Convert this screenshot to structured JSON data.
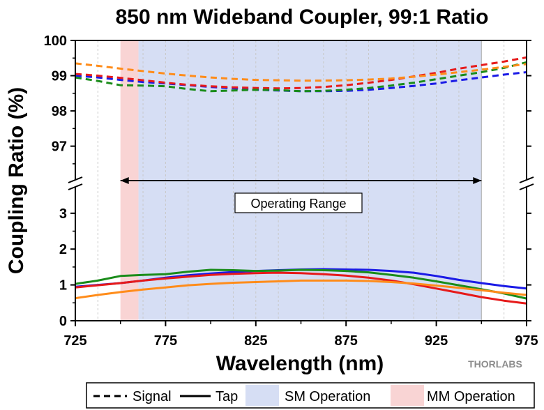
{
  "chart_data": {
    "type": "line",
    "title": "850 nm Wideband Coupler, 99:1 Ratio",
    "xlabel": "Wavelength (nm)",
    "ylabel": "Coupling Ratio (%)",
    "xlim": [
      725,
      975
    ],
    "x_ticks": [
      725,
      775,
      825,
      875,
      925,
      975
    ],
    "y_upper_range": [
      96.3,
      100
    ],
    "y_upper_ticks": [
      97,
      98,
      99,
      100
    ],
    "y_lower_range": [
      0,
      3.6
    ],
    "y_lower_ticks": [
      0,
      1,
      2,
      3
    ],
    "regions": [
      {
        "name": "MM Operation",
        "start": 750,
        "end": 760,
        "color": "#f9d4d4"
      },
      {
        "name": "SM Operation",
        "start": 760,
        "end": 950,
        "color": "#d6def4"
      }
    ],
    "annotations": [
      {
        "text": "Operating Range",
        "x": 837,
        "y_lower": 3.0,
        "arrow_from": 750,
        "arrow_to": 950
      }
    ],
    "legend": [
      {
        "label": "Signal",
        "style": "dashed"
      },
      {
        "label": "Tap",
        "style": "solid"
      },
      {
        "label": "SM Operation",
        "style": "fill"
      },
      {
        "label": "MM Operation",
        "style": "fill"
      }
    ],
    "watermark": "THORLABS",
    "x": [
      725,
      737.5,
      750,
      762.5,
      775,
      787.5,
      800,
      812.5,
      825,
      837.5,
      850,
      862.5,
      875,
      887.5,
      900,
      912.5,
      925,
      937.5,
      950,
      962.5,
      975
    ],
    "series": [
      {
        "name": "Signal - Blue",
        "line": "dashed",
        "panel": "upper",
        "color": "#1a1ae6",
        "values": [
          99.0,
          98.95,
          98.88,
          98.82,
          98.78,
          98.73,
          98.68,
          98.64,
          98.6,
          98.58,
          98.56,
          98.56,
          98.57,
          98.6,
          98.65,
          98.71,
          98.78,
          98.87,
          98.95,
          99.03,
          99.1
        ]
      },
      {
        "name": "Signal - Red",
        "line": "dashed",
        "panel": "upper",
        "color": "#e61a1a",
        "values": [
          99.05,
          99.0,
          98.94,
          98.87,
          98.8,
          98.74,
          98.7,
          98.67,
          98.65,
          98.64,
          98.65,
          98.68,
          98.73,
          98.8,
          98.88,
          98.98,
          99.08,
          99.2,
          99.3,
          99.4,
          99.52
        ]
      },
      {
        "name": "Signal - Green",
        "line": "dashed",
        "panel": "upper",
        "color": "#1a8c1a",
        "values": [
          98.95,
          98.85,
          98.73,
          98.72,
          98.7,
          98.62,
          98.56,
          98.58,
          98.6,
          98.59,
          98.56,
          98.57,
          98.6,
          98.65,
          98.72,
          98.8,
          98.9,
          99.0,
          99.1,
          99.22,
          99.38
        ]
      },
      {
        "name": "Signal - Orange",
        "line": "dashed",
        "panel": "upper",
        "color": "#ff8c1a",
        "values": [
          99.35,
          99.28,
          99.2,
          99.13,
          99.06,
          99.0,
          98.95,
          98.91,
          98.88,
          98.87,
          98.86,
          98.86,
          98.87,
          98.89,
          98.92,
          98.97,
          99.03,
          99.1,
          99.17,
          99.25,
          99.33
        ]
      },
      {
        "name": "Tap - Blue",
        "line": "solid",
        "panel": "lower",
        "color": "#1a1ae6",
        "values": [
          0.95,
          1.0,
          1.05,
          1.12,
          1.2,
          1.27,
          1.32,
          1.36,
          1.39,
          1.41,
          1.43,
          1.44,
          1.43,
          1.42,
          1.39,
          1.34,
          1.25,
          1.14,
          1.05,
          0.97,
          0.9
        ]
      },
      {
        "name": "Tap - Red",
        "line": "solid",
        "panel": "lower",
        "color": "#e61a1a",
        "values": [
          0.93,
          0.99,
          1.05,
          1.12,
          1.18,
          1.23,
          1.28,
          1.31,
          1.33,
          1.34,
          1.33,
          1.3,
          1.26,
          1.2,
          1.12,
          1.02,
          0.9,
          0.78,
          0.66,
          0.56,
          0.48
        ]
      },
      {
        "name": "Tap - Green",
        "line": "solid",
        "panel": "lower",
        "color": "#1a8c1a",
        "values": [
          1.03,
          1.12,
          1.25,
          1.28,
          1.3,
          1.37,
          1.42,
          1.41,
          1.39,
          1.4,
          1.42,
          1.41,
          1.39,
          1.35,
          1.28,
          1.2,
          1.1,
          0.99,
          0.88,
          0.76,
          0.62
        ]
      },
      {
        "name": "Tap - Orange",
        "line": "solid",
        "panel": "lower",
        "color": "#ff8c1a",
        "values": [
          0.63,
          0.72,
          0.8,
          0.87,
          0.93,
          0.99,
          1.03,
          1.06,
          1.08,
          1.1,
          1.12,
          1.12,
          1.12,
          1.11,
          1.08,
          1.04,
          0.98,
          0.92,
          0.85,
          0.78,
          0.72
        ]
      }
    ]
  }
}
